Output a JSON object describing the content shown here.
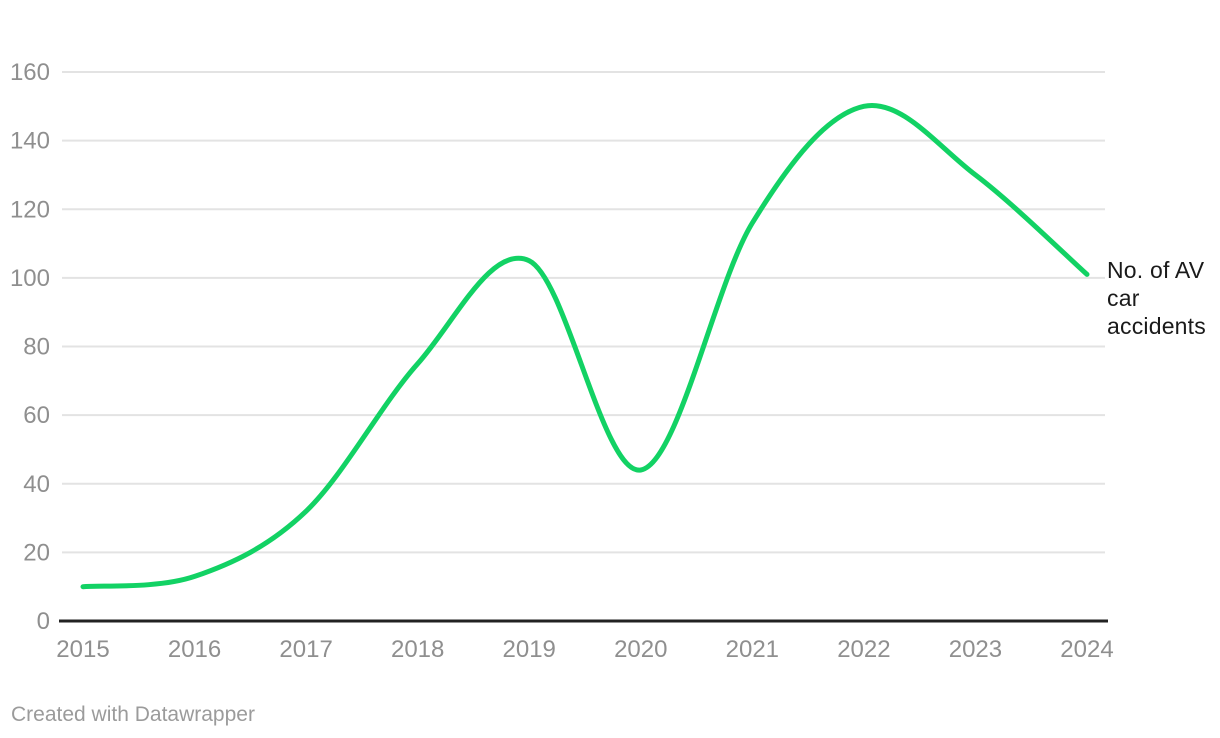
{
  "chart_data": {
    "type": "line",
    "x": [
      2015,
      2016,
      2017,
      2018,
      2019,
      2020,
      2021,
      2022,
      2023,
      2024
    ],
    "series": [
      {
        "name": "No. of AV car accidents",
        "values": [
          10,
          13,
          32,
          75,
          105,
          44,
          116,
          150,
          130,
          101
        ]
      }
    ],
    "title": "",
    "xlabel": "",
    "ylabel": "",
    "ylim": [
      0,
      160
    ],
    "yticks": [
      0,
      20,
      40,
      60,
      80,
      100,
      120,
      140,
      160
    ],
    "xticks": [
      2015,
      2016,
      2017,
      2018,
      2019,
      2020,
      2021,
      2022,
      2023,
      2024
    ],
    "grid": true,
    "interpolation": "curved",
    "legend_position": "right-of-line-end",
    "label": "No. of AV car accidents"
  },
  "footer": {
    "credit": "Created with Datawrapper"
  },
  "colors": {
    "line": "#12d264",
    "axis_text": "#8f8f8f",
    "gridline": "#e3e3e3",
    "baseline": "#222222",
    "label_text": "#1a1a1a",
    "credit_text": "#9b9b9b",
    "background": "#ffffff"
  }
}
